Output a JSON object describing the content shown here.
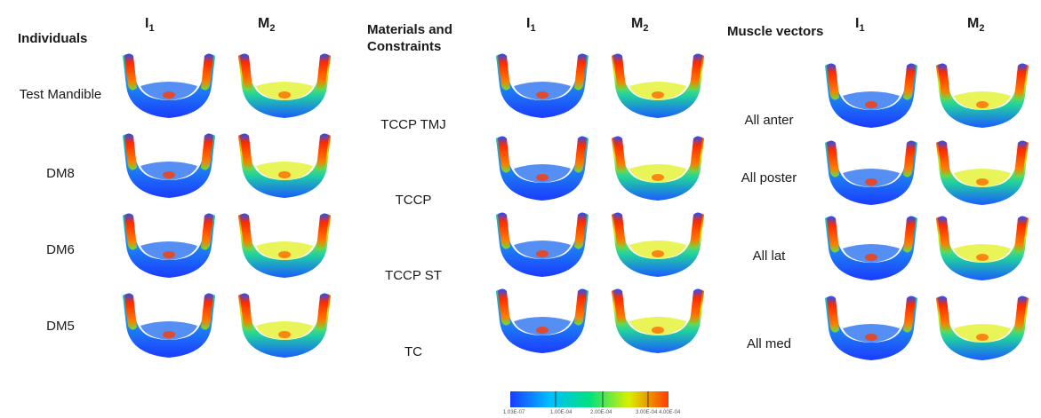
{
  "panels": [
    {
      "header": "Individuals",
      "col1": "I",
      "col1_sub": "1",
      "col2": "M",
      "col2_sub": "2",
      "rows": [
        "Test Mandible",
        "DM8",
        "DM6",
        "DM5"
      ]
    },
    {
      "header_line1": "Materials and",
      "header_line2": "Constraints",
      "col1": "I",
      "col1_sub": "1",
      "col2": "M",
      "col2_sub": "2",
      "rows": [
        "TCCP TMJ",
        "TCCP",
        "TCCP ST",
        "TC"
      ]
    },
    {
      "header": "Muscle vectors",
      "col1": "I",
      "col1_sub": "1",
      "col2": "M",
      "col2_sub": "2",
      "rows": [
        "All anter",
        "All poster",
        "All lat",
        "All med"
      ]
    }
  ],
  "colorbar": {
    "ticks": [
      "1.03E-07",
      "1.00E-04",
      "2.00E-04",
      "3.00E-04",
      "4.00E-04"
    ],
    "colors": [
      "#1a3cff",
      "#00bfff",
      "#00e080",
      "#d8f000",
      "#ff3a00"
    ]
  }
}
